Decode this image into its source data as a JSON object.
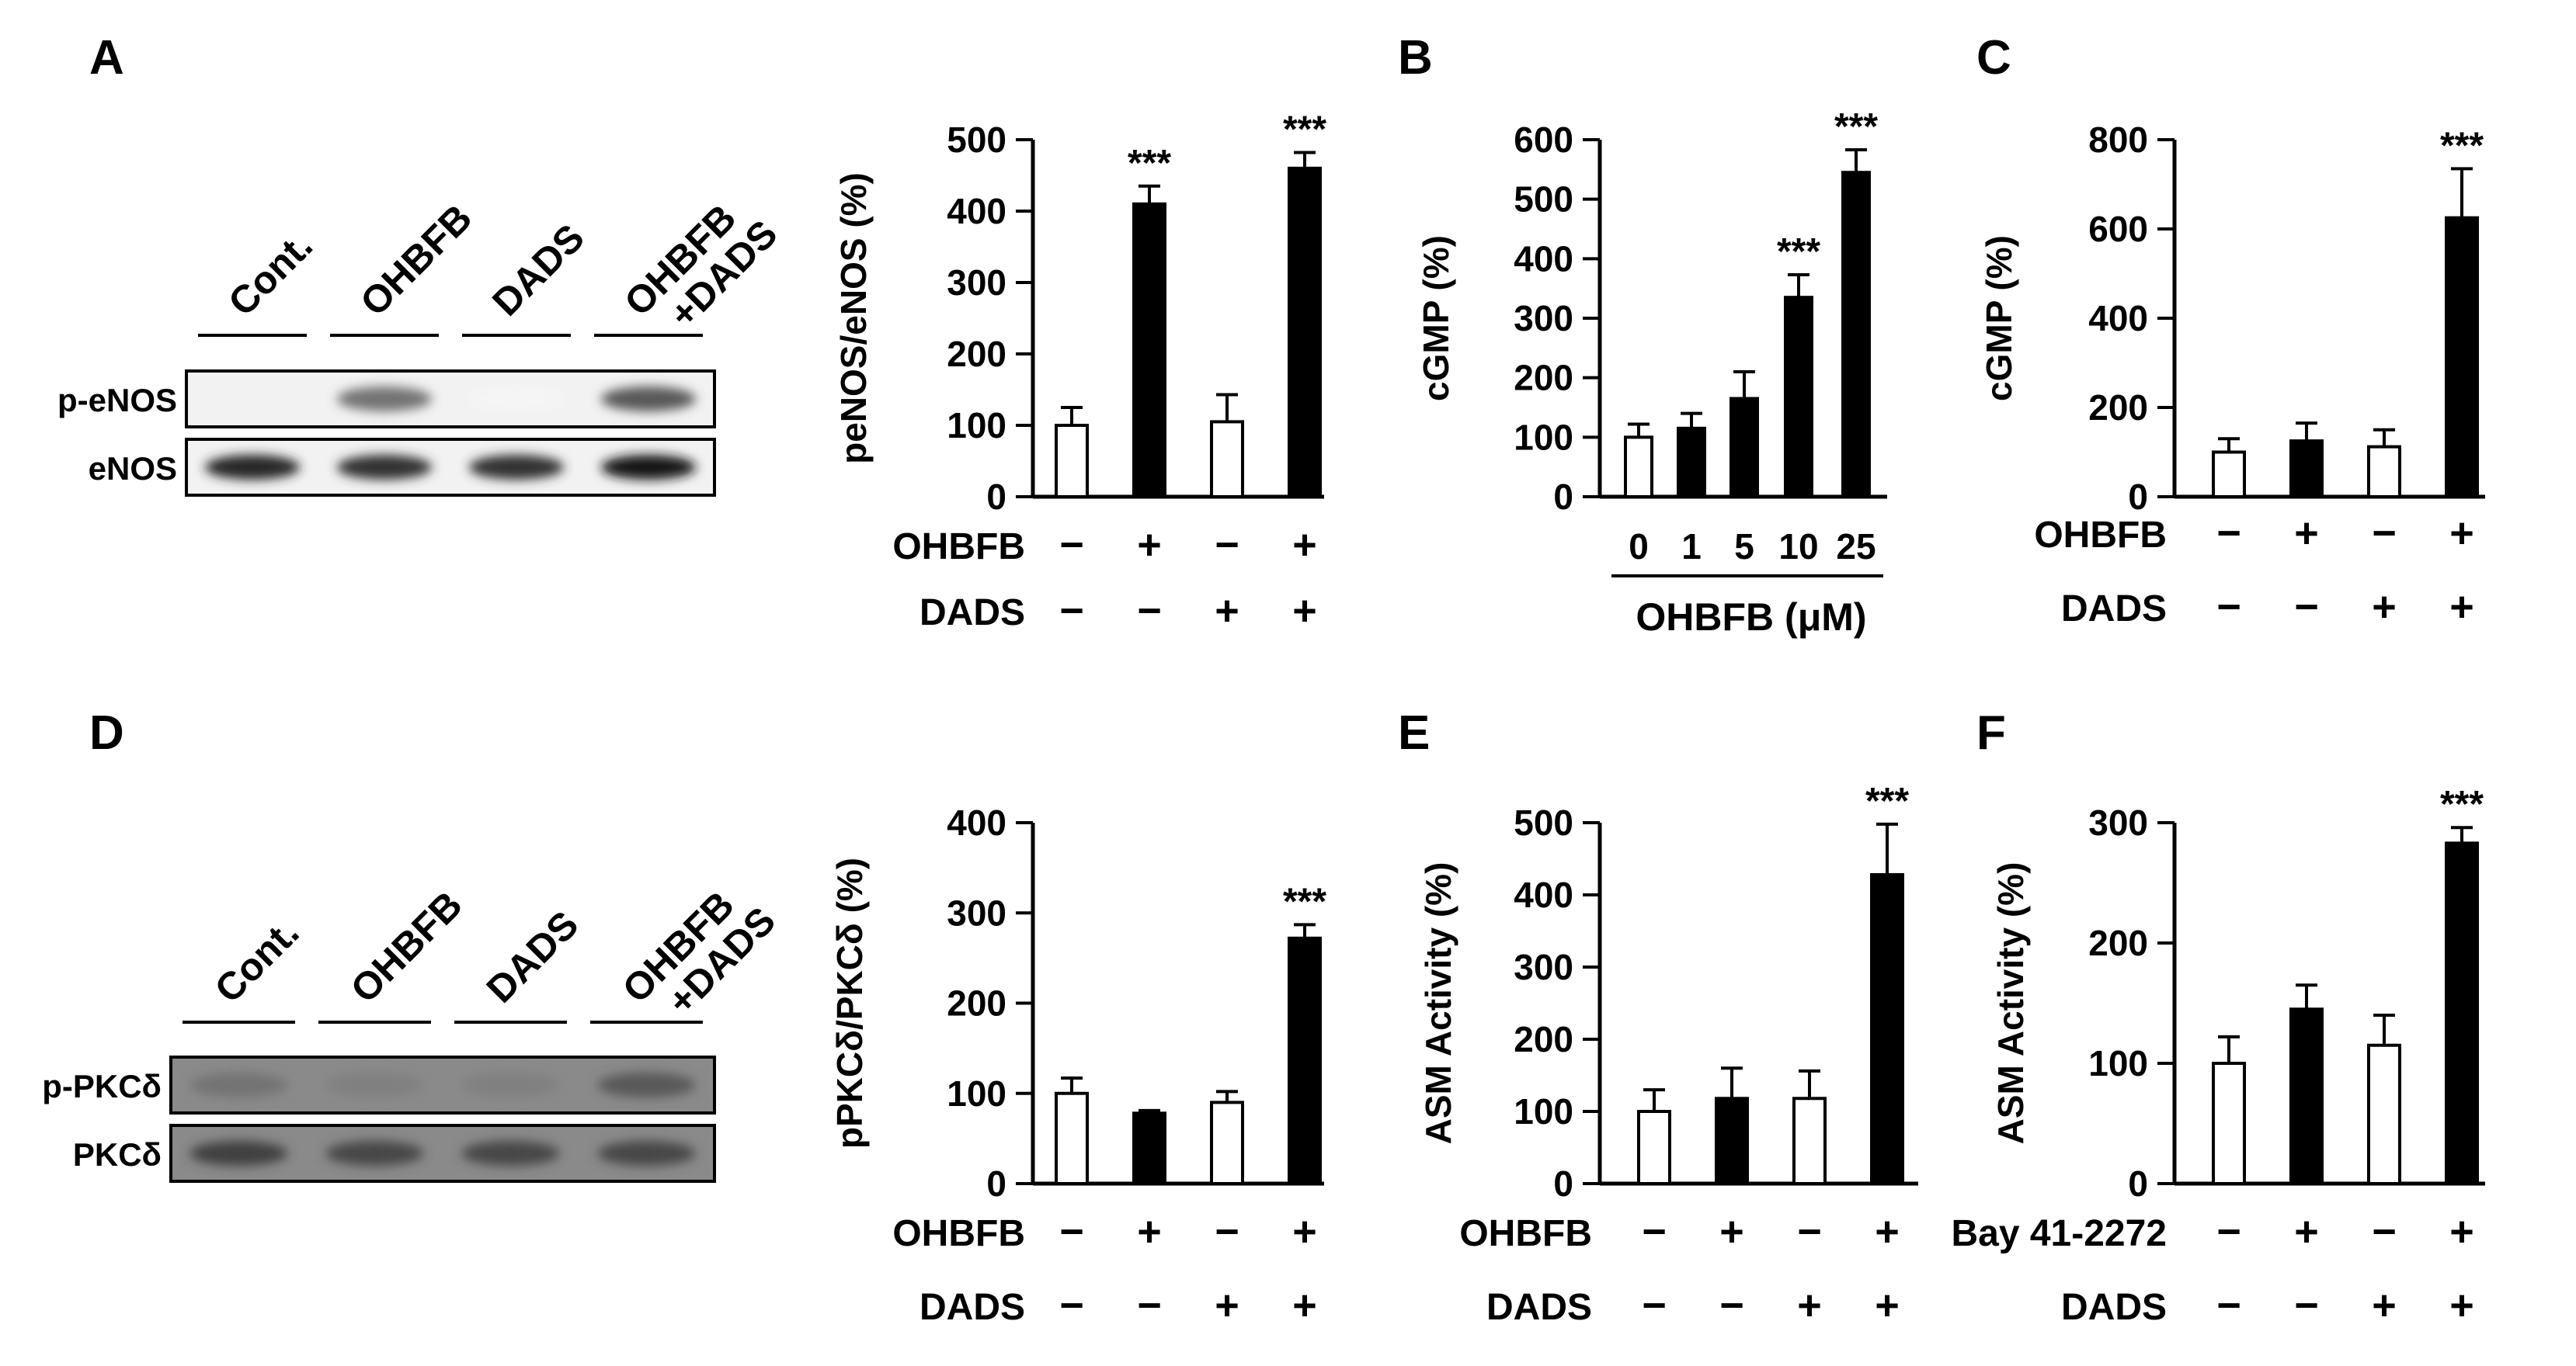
{
  "panel_letters": {
    "A": "A",
    "B": "B",
    "C": "C",
    "D": "D",
    "E": "E",
    "F": "F"
  },
  "colors": {
    "control_bar": "#ffffff",
    "treated_bar": "#000000",
    "axis": "#000000"
  },
  "blots": {
    "A": {
      "lanes": [
        "Cont.",
        "OHBFB",
        "DADS",
        "OHBFB\n+DADS"
      ],
      "bands": [
        {
          "label": "p-eNOS",
          "intensity": [
            0.05,
            0.55,
            0.04,
            0.65
          ]
        },
        {
          "label": "eNOS",
          "intensity": [
            0.85,
            0.8,
            0.8,
            0.9
          ]
        }
      ]
    },
    "D": {
      "lanes": [
        "Cont.",
        "OHBFB",
        "DADS",
        "OHBFB\n+DADS"
      ],
      "bands": [
        {
          "label": "p-PKCδ",
          "intensity": [
            0.55,
            0.5,
            0.5,
            0.65
          ]
        },
        {
          "label": "PKCδ",
          "intensity": [
            0.75,
            0.72,
            0.72,
            0.72
          ]
        }
      ]
    }
  },
  "chart_data": [
    {
      "panel": "A",
      "type": "bar",
      "ylabel": "peNOS/eNOS (%)",
      "ylim": [
        0,
        500
      ],
      "ticks": [
        0,
        100,
        200,
        300,
        400,
        500
      ],
      "values": [
        100,
        410,
        105,
        460
      ],
      "errors": [
        25,
        25,
        38,
        22
      ],
      "fill": [
        "white",
        "black",
        "white",
        "black"
      ],
      "sig": [
        "",
        "***",
        "",
        "***"
      ],
      "rows": [
        {
          "label": "OHBFB",
          "signs": [
            "−",
            "+",
            "−",
            "+"
          ]
        },
        {
          "label": "DADS",
          "signs": [
            "−",
            "−",
            "+",
            "+"
          ]
        }
      ]
    },
    {
      "panel": "B",
      "type": "bar",
      "ylabel": "cGMP (%)",
      "ylim": [
        0,
        600
      ],
      "ticks": [
        0,
        100,
        200,
        300,
        400,
        500,
        600
      ],
      "categories": [
        "0",
        "1",
        "5",
        "10",
        "25"
      ],
      "values": [
        100,
        115,
        165,
        335,
        545
      ],
      "errors": [
        22,
        25,
        45,
        38,
        38
      ],
      "fill": [
        "white",
        "black",
        "black",
        "black",
        "black"
      ],
      "sig": [
        "",
        "",
        "",
        "***",
        "***"
      ],
      "xlabel": "OHBFB (μM)"
    },
    {
      "panel": "C",
      "type": "bar",
      "ylabel": "cGMP (%)",
      "ylim": [
        0,
        800
      ],
      "ticks": [
        0,
        200,
        400,
        600,
        800
      ],
      "values": [
        100,
        125,
        112,
        625
      ],
      "errors": [
        30,
        40,
        38,
        110
      ],
      "fill": [
        "white",
        "black",
        "white",
        "black"
      ],
      "sig": [
        "",
        "",
        "",
        "***"
      ],
      "rows": [
        {
          "label": "OHBFB",
          "signs": [
            "−",
            "+",
            "−",
            "+"
          ]
        },
        {
          "label": "DADS",
          "signs": [
            "−",
            "−",
            "+",
            "+"
          ]
        }
      ]
    },
    {
      "panel": "D",
      "type": "bar",
      "ylabel": "pPKCδ/PKCδ (%)",
      "ylim": [
        0,
        400
      ],
      "ticks": [
        0,
        100,
        200,
        300,
        400
      ],
      "values": [
        100,
        78,
        90,
        272
      ],
      "errors": [
        17,
        3,
        12,
        15
      ],
      "fill": [
        "white",
        "black",
        "white",
        "black"
      ],
      "sig": [
        "",
        "",
        "",
        "***"
      ],
      "rows": [
        {
          "label": "OHBFB",
          "signs": [
            "−",
            "+",
            "−",
            "+"
          ]
        },
        {
          "label": "DADS",
          "signs": [
            "−",
            "−",
            "+",
            "+"
          ]
        }
      ]
    },
    {
      "panel": "E",
      "type": "bar",
      "ylabel": "ASM Activity (%)",
      "ylim": [
        0,
        500
      ],
      "ticks": [
        0,
        100,
        200,
        300,
        400,
        500
      ],
      "values": [
        100,
        118,
        118,
        428
      ],
      "errors": [
        30,
        42,
        38,
        70
      ],
      "fill": [
        "white",
        "black",
        "white",
        "black"
      ],
      "sig": [
        "",
        "",
        "",
        "***"
      ],
      "rows": [
        {
          "label": "OHBFB",
          "signs": [
            "−",
            "+",
            "−",
            "+"
          ]
        },
        {
          "label": "DADS",
          "signs": [
            "−",
            "−",
            "+",
            "+"
          ]
        }
      ]
    },
    {
      "panel": "F",
      "type": "bar",
      "ylabel": "ASM Activity (%)",
      "ylim": [
        0,
        300
      ],
      "ticks": [
        0,
        100,
        200,
        300
      ],
      "values": [
        100,
        145,
        115,
        283
      ],
      "errors": [
        22,
        20,
        25,
        13
      ],
      "fill": [
        "white",
        "black",
        "white",
        "black"
      ],
      "sig": [
        "",
        "",
        "",
        "***"
      ],
      "rows": [
        {
          "label": "Bay 41-2272",
          "signs": [
            "−",
            "+",
            "−",
            "+"
          ]
        },
        {
          "label": "DADS",
          "signs": [
            "−",
            "−",
            "+",
            "+"
          ]
        }
      ]
    }
  ]
}
